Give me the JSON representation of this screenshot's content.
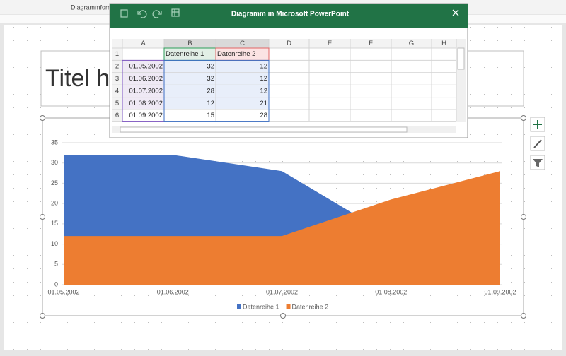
{
  "ribbon": {
    "label": "Diagrammform"
  },
  "slide": {
    "title": "Titel h"
  },
  "window": {
    "title": "Diagramm in Microsoft PowerPoint"
  },
  "spreadsheet": {
    "columns": [
      "A",
      "B",
      "C",
      "D",
      "E",
      "F",
      "G",
      "H"
    ],
    "rows": [
      1,
      2,
      3,
      4,
      5,
      6
    ]
  },
  "chart_data": {
    "type": "area",
    "categories": [
      "01.05.2002",
      "01.06.2002",
      "01.07.2002",
      "01.08.2002",
      "01.09.2002"
    ],
    "series": [
      {
        "name": "Datenreihe 1",
        "color": "#4472c4",
        "values": [
          32,
          32,
          28,
          12,
          15
        ]
      },
      {
        "name": "Datenreihe 2",
        "color": "#ed7d31",
        "values": [
          12,
          12,
          12,
          21,
          28
        ]
      }
    ],
    "ylim": [
      0,
      35
    ],
    "yticks": [
      0,
      5,
      10,
      15,
      20,
      25,
      30,
      35
    ],
    "grid": true,
    "legend": "bottom"
  }
}
